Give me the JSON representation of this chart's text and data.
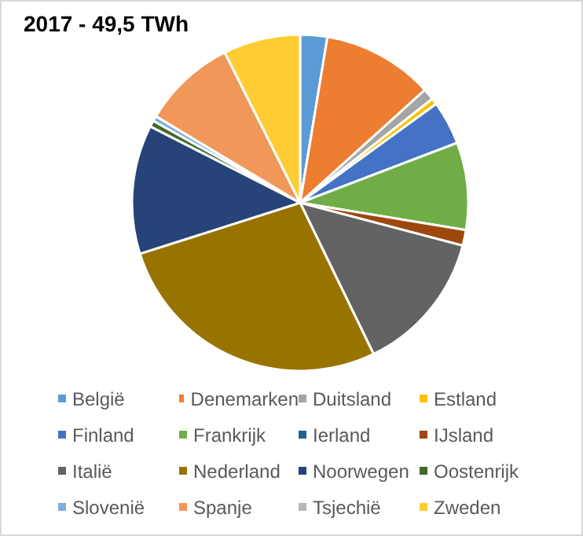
{
  "chart_data": {
    "type": "pie",
    "title": "2017 - 49,5 TWh",
    "categories": [
      "België",
      "Denemarken",
      "Duitsland",
      "Estland",
      "Finland",
      "Frankrijk",
      "Ierland",
      "IJsland",
      "Italië",
      "Nederland",
      "Noorwegen",
      "Oostenrijk",
      "Slovenië",
      "Spanje",
      "Tsjechië",
      "Zweden"
    ],
    "values": [
      2.6,
      10.7,
      1.1,
      0.6,
      4.2,
      8.4,
      0,
      1.5,
      13.7,
      27.3,
      12.4,
      0.6,
      0.5,
      9.0,
      null,
      7.4
    ],
    "colors": [
      "#5b9bd5",
      "#ed7d31",
      "#a5a5a5",
      "#ffc000",
      "#4472c4",
      "#70ad47",
      "#255e91",
      "#9e480e",
      "#636363",
      "#997300",
      "#264478",
      "#43682b",
      "#7cafdd",
      "#f1975a",
      "#b7b7b7",
      "#ffcd33"
    ],
    "legend": "bottom"
  }
}
